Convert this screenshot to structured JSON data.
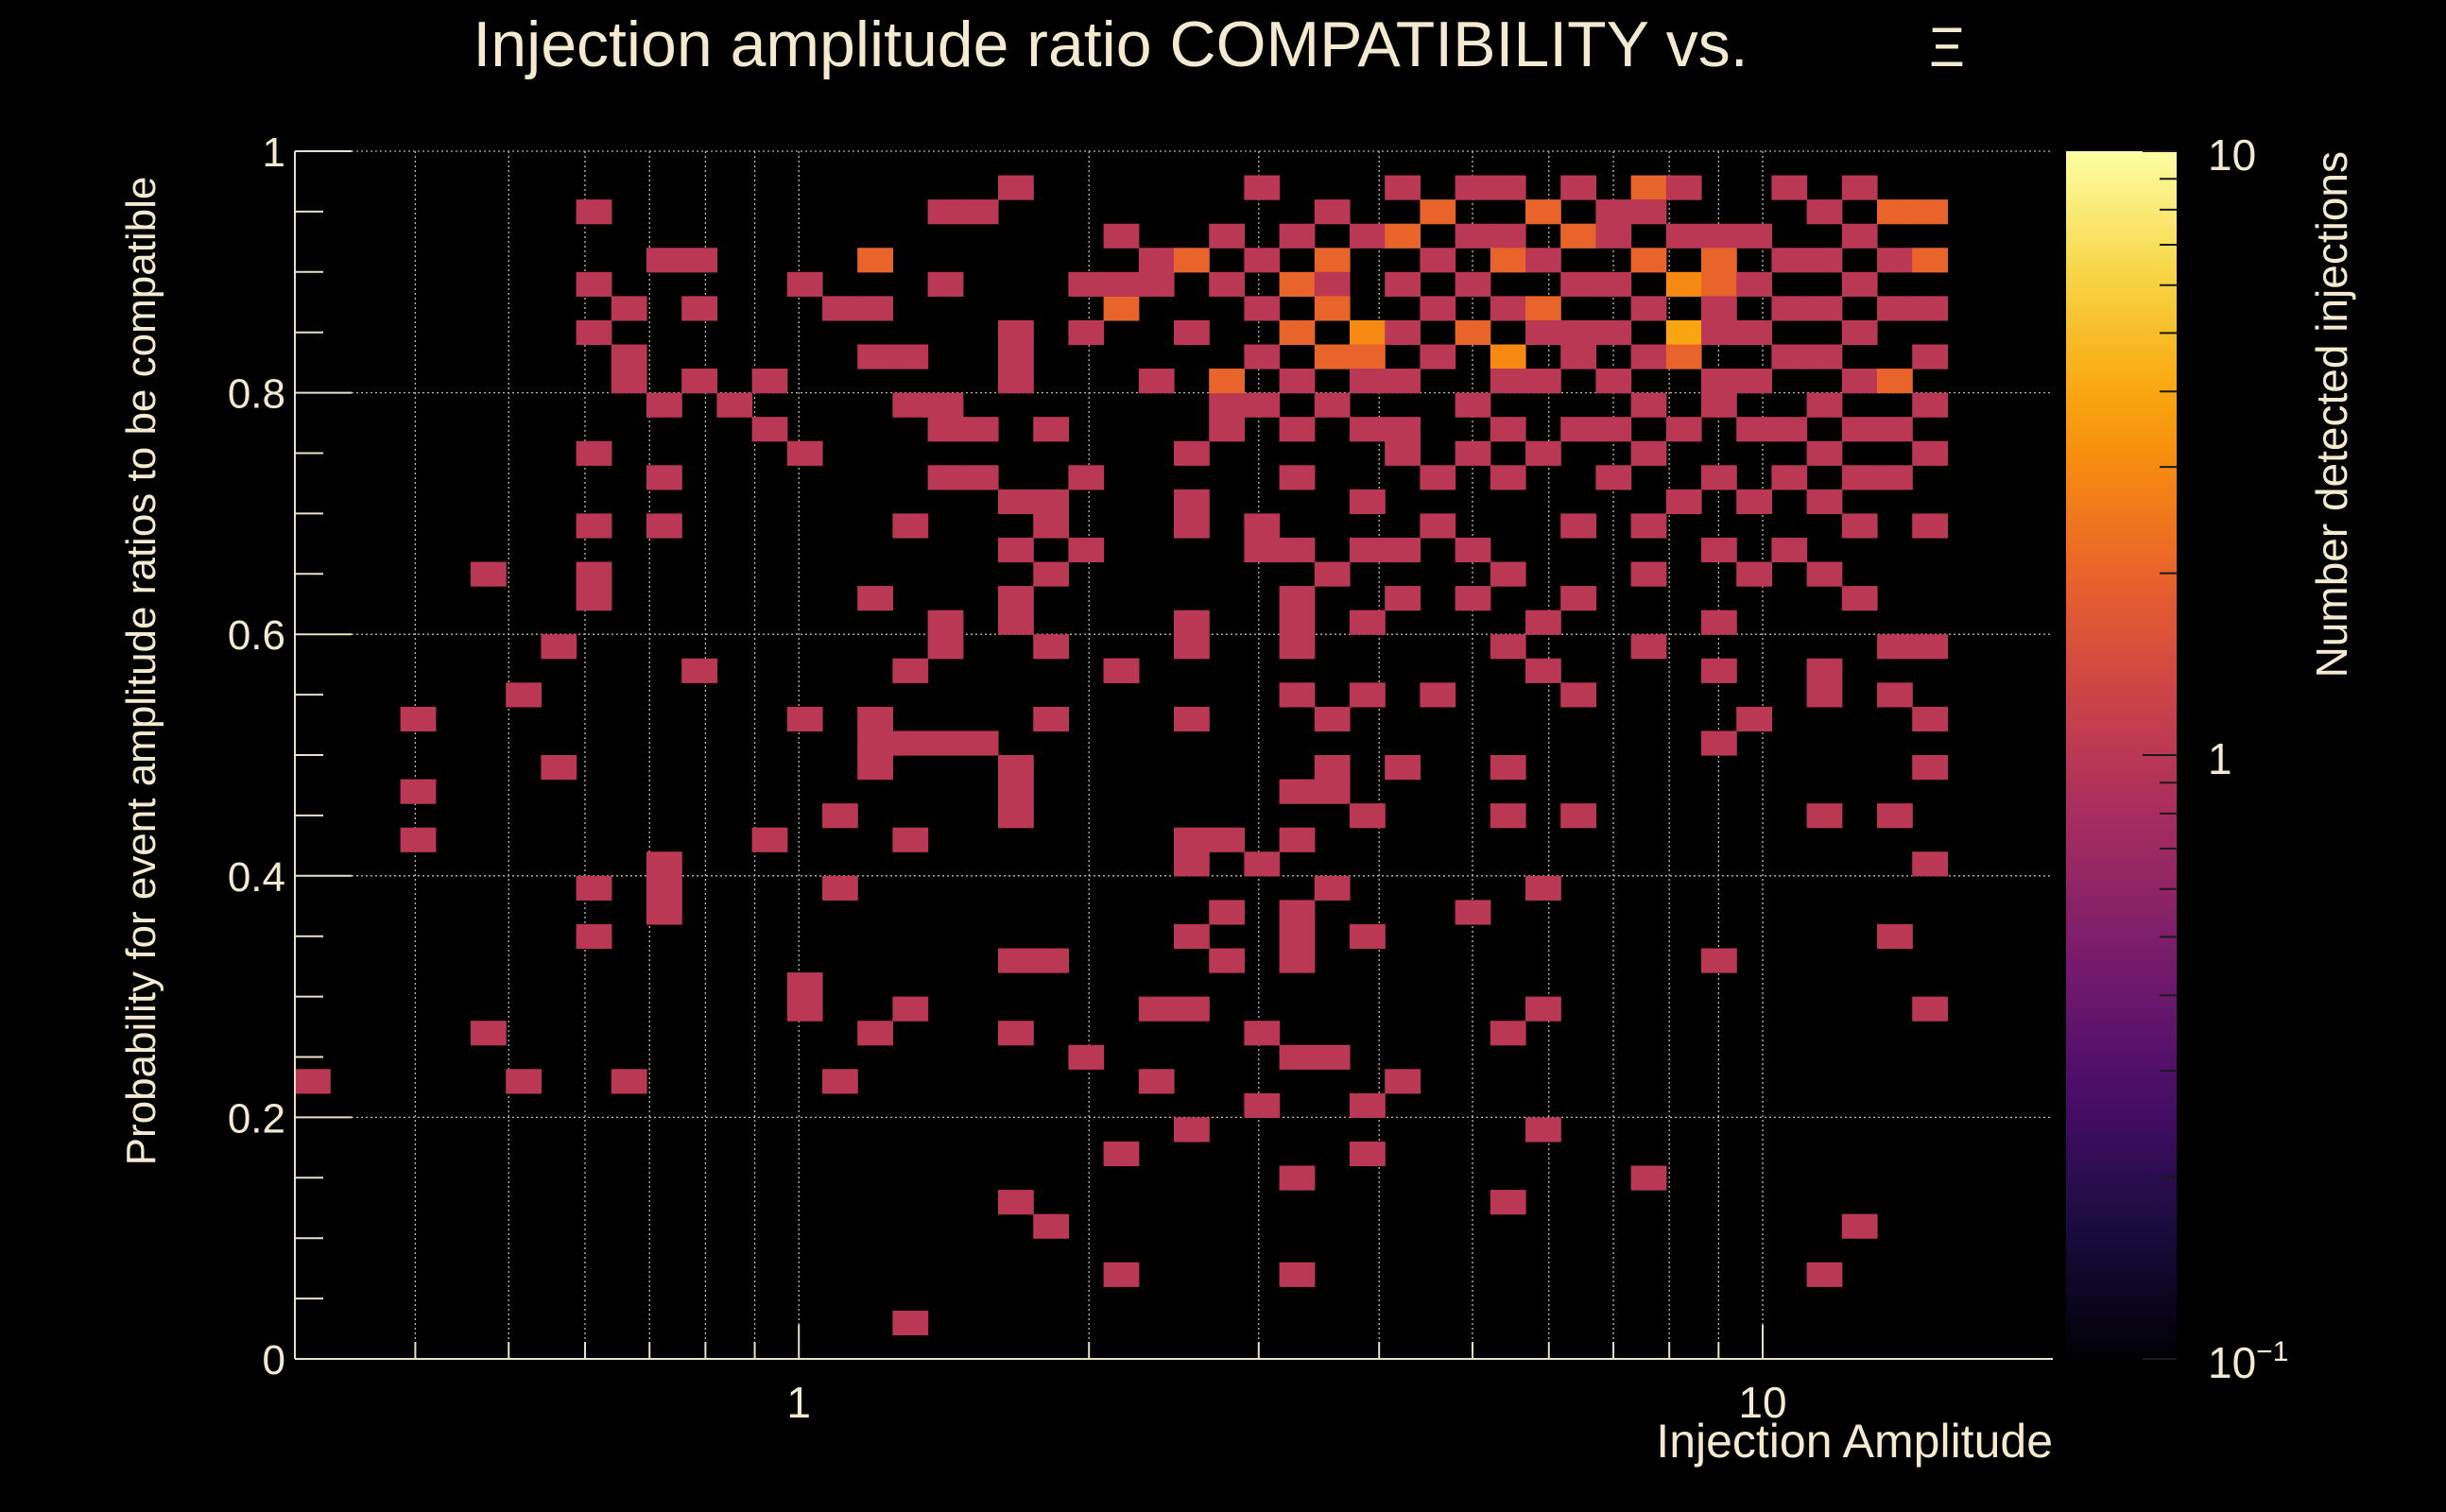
{
  "chart_data": {
    "type": "heatmap",
    "title": "Injection amplitude ratio COMPATIBILITY vs.",
    "title_symbol": "Ξ",
    "xlabel": "Injection Amplitude",
    "ylabel": "Probability for event amplitude ratios to be compatible",
    "zlabel": "Number detected injections",
    "x_scale": "log",
    "xlim": [
      0.3,
      20
    ],
    "ylim": [
      0,
      1
    ],
    "zlim": [
      0.1,
      10
    ],
    "z_scale": "log",
    "grid": true,
    "x_ticks": [
      {
        "value": 1,
        "label": "1"
      },
      {
        "value": 10,
        "label": "10"
      }
    ],
    "y_ticks": [
      {
        "value": 0,
        "label": "0"
      },
      {
        "value": 0.2,
        "label": "0.2"
      },
      {
        "value": 0.4,
        "label": "0.4"
      },
      {
        "value": 0.6,
        "label": "0.6"
      },
      {
        "value": 0.8,
        "label": "0.8"
      },
      {
        "value": 1,
        "label": "1"
      }
    ],
    "z_ticks": [
      {
        "value": 0.1,
        "label": "10",
        "sup": "−1"
      },
      {
        "value": 1,
        "label": "1",
        "sup": ""
      },
      {
        "value": 10,
        "label": "10",
        "sup": ""
      }
    ],
    "colormap": [
      "#000004",
      "#1b0c41",
      "#4a0c6b",
      "#781c6d",
      "#a52c60",
      "#cf4446",
      "#ed6925",
      "#fb9b06",
      "#f7d13d",
      "#fcffa4"
    ],
    "x_bins": 50,
    "y_bins": 50,
    "cells": [
      [
        0,
        11,
        1
      ],
      [
        3,
        26,
        1
      ],
      [
        3,
        23,
        1
      ],
      [
        3,
        21,
        1
      ],
      [
        5,
        13,
        1
      ],
      [
        5,
        32,
        1
      ],
      [
        6,
        27,
        1
      ],
      [
        6,
        11,
        1
      ],
      [
        7,
        24,
        1
      ],
      [
        7,
        29,
        1
      ],
      [
        8,
        31,
        1
      ],
      [
        8,
        32,
        1
      ],
      [
        8,
        34,
        1
      ],
      [
        8,
        37,
        1
      ],
      [
        8,
        42,
        1
      ],
      [
        8,
        44,
        1
      ],
      [
        8,
        47,
        1
      ],
      [
        8,
        17,
        1
      ],
      [
        8,
        19,
        1
      ],
      [
        9,
        40,
        1
      ],
      [
        9,
        41,
        1
      ],
      [
        9,
        43,
        1
      ],
      [
        9,
        11,
        1
      ],
      [
        10,
        45,
        1
      ],
      [
        10,
        39,
        1
      ],
      [
        10,
        36,
        1
      ],
      [
        10,
        34,
        1
      ],
      [
        10,
        20,
        1
      ],
      [
        10,
        18,
        1
      ],
      [
        10,
        19,
        1
      ],
      [
        11,
        40,
        1
      ],
      [
        11,
        43,
        1
      ],
      [
        11,
        45,
        1
      ],
      [
        11,
        28,
        1
      ],
      [
        12,
        39,
        1
      ],
      [
        13,
        40,
        1
      ],
      [
        13,
        38,
        1
      ],
      [
        13,
        21,
        1
      ],
      [
        14,
        37,
        1
      ],
      [
        14,
        44,
        1
      ],
      [
        14,
        26,
        1
      ],
      [
        14,
        15,
        1
      ],
      [
        14,
        14,
        1
      ],
      [
        15,
        19,
        1
      ],
      [
        15,
        22,
        1
      ],
      [
        15,
        43,
        1
      ],
      [
        15,
        11,
        1
      ],
      [
        16,
        45,
        2
      ],
      [
        16,
        41,
        1
      ],
      [
        16,
        43,
        1
      ],
      [
        16,
        31,
        1
      ],
      [
        16,
        26,
        1
      ],
      [
        16,
        25,
        1
      ],
      [
        16,
        24,
        1
      ],
      [
        16,
        13,
        1
      ],
      [
        17,
        41,
        1
      ],
      [
        17,
        39,
        1
      ],
      [
        17,
        34,
        1
      ],
      [
        17,
        28,
        1
      ],
      [
        17,
        25,
        1
      ],
      [
        17,
        21,
        1
      ],
      [
        17,
        14,
        1
      ],
      [
        17,
        1,
        1
      ],
      [
        18,
        36,
        1
      ],
      [
        18,
        38,
        1
      ],
      [
        18,
        39,
        1
      ],
      [
        18,
        47,
        1
      ],
      [
        18,
        44,
        1
      ],
      [
        18,
        30,
        1
      ],
      [
        18,
        29,
        1
      ],
      [
        18,
        25,
        1
      ],
      [
        19,
        38,
        1
      ],
      [
        19,
        36,
        1
      ],
      [
        19,
        47,
        1
      ],
      [
        19,
        25,
        1
      ],
      [
        20,
        40,
        1
      ],
      [
        20,
        41,
        1
      ],
      [
        20,
        42,
        1
      ],
      [
        20,
        48,
        1
      ],
      [
        20,
        31,
        1
      ],
      [
        20,
        33,
        1
      ],
      [
        20,
        35,
        1
      ],
      [
        20,
        30,
        1
      ],
      [
        20,
        24,
        1
      ],
      [
        20,
        23,
        1
      ],
      [
        20,
        22,
        1
      ],
      [
        20,
        16,
        1
      ],
      [
        20,
        13,
        1
      ],
      [
        20,
        6,
        1
      ],
      [
        21,
        38,
        1
      ],
      [
        21,
        34,
        1
      ],
      [
        21,
        35,
        1
      ],
      [
        21,
        32,
        1
      ],
      [
        21,
        29,
        1
      ],
      [
        21,
        26,
        1
      ],
      [
        21,
        16,
        1
      ],
      [
        21,
        5,
        1
      ],
      [
        22,
        44,
        1
      ],
      [
        22,
        42,
        1
      ],
      [
        22,
        36,
        1
      ],
      [
        22,
        33,
        1
      ],
      [
        22,
        12,
        1
      ],
      [
        23,
        46,
        1
      ],
      [
        23,
        43,
        2
      ],
      [
        23,
        44,
        1
      ],
      [
        23,
        28,
        1
      ],
      [
        23,
        28,
        1
      ],
      [
        23,
        28,
        1
      ],
      [
        23,
        8,
        1
      ],
      [
        23,
        3,
        1
      ],
      [
        24,
        45,
        1
      ],
      [
        24,
        44,
        1
      ],
      [
        24,
        40,
        1
      ],
      [
        24,
        14,
        1
      ],
      [
        24,
        11,
        1
      ],
      [
        25,
        45,
        2
      ],
      [
        25,
        42,
        1
      ],
      [
        25,
        37,
        1
      ],
      [
        25,
        35,
        1
      ],
      [
        25,
        34,
        1
      ],
      [
        25,
        30,
        1
      ],
      [
        25,
        29,
        1
      ],
      [
        25,
        26,
        1
      ],
      [
        25,
        21,
        1
      ],
      [
        25,
        20,
        1
      ],
      [
        25,
        17,
        1
      ],
      [
        25,
        14,
        1
      ],
      [
        25,
        9,
        1
      ],
      [
        26,
        46,
        1
      ],
      [
        26,
        44,
        1
      ],
      [
        26,
        39,
        1
      ],
      [
        26,
        40,
        2
      ],
      [
        26,
        38,
        1
      ],
      [
        26,
        21,
        1
      ],
      [
        26,
        18,
        1
      ],
      [
        26,
        16,
        1
      ],
      [
        27,
        48,
        1
      ],
      [
        27,
        45,
        1
      ],
      [
        27,
        43,
        1
      ],
      [
        27,
        41,
        1
      ],
      [
        27,
        39,
        1
      ],
      [
        27,
        34,
        1
      ],
      [
        27,
        33,
        1
      ],
      [
        27,
        20,
        1
      ],
      [
        27,
        13,
        1
      ],
      [
        27,
        10,
        1
      ],
      [
        28,
        46,
        1
      ],
      [
        28,
        44,
        2
      ],
      [
        28,
        42,
        2
      ],
      [
        28,
        40,
        1
      ],
      [
        28,
        38,
        1
      ],
      [
        28,
        36,
        1
      ],
      [
        28,
        33,
        1
      ],
      [
        28,
        31,
        1
      ],
      [
        28,
        30,
        1
      ],
      [
        28,
        29,
        1
      ],
      [
        28,
        27,
        1
      ],
      [
        28,
        23,
        1
      ],
      [
        28,
        21,
        1
      ],
      [
        28,
        18,
        1
      ],
      [
        28,
        17,
        1
      ],
      [
        28,
        16,
        1
      ],
      [
        28,
        12,
        1
      ],
      [
        28,
        7,
        1
      ],
      [
        28,
        3,
        1
      ],
      [
        29,
        47,
        1
      ],
      [
        29,
        45,
        2
      ],
      [
        29,
        44,
        1
      ],
      [
        29,
        43,
        2
      ],
      [
        29,
        41,
        2
      ],
      [
        29,
        39,
        1
      ],
      [
        29,
        32,
        1
      ],
      [
        29,
        26,
        1
      ],
      [
        29,
        24,
        1
      ],
      [
        29,
        23,
        1
      ],
      [
        29,
        19,
        1
      ],
      [
        29,
        12,
        1
      ],
      [
        30,
        46,
        1
      ],
      [
        30,
        42,
        3
      ],
      [
        30,
        41,
        2
      ],
      [
        30,
        40,
        1
      ],
      [
        30,
        38,
        1
      ],
      [
        30,
        35,
        1
      ],
      [
        30,
        33,
        1
      ],
      [
        30,
        30,
        1
      ],
      [
        30,
        27,
        1
      ],
      [
        30,
        22,
        1
      ],
      [
        30,
        17,
        1
      ],
      [
        30,
        10,
        1
      ],
      [
        30,
        8,
        1
      ],
      [
        31,
        48,
        1
      ],
      [
        31,
        46,
        2
      ],
      [
        31,
        44,
        1
      ],
      [
        31,
        42,
        1
      ],
      [
        31,
        40,
        1
      ],
      [
        31,
        38,
        1
      ],
      [
        31,
        37,
        1
      ],
      [
        31,
        33,
        1
      ],
      [
        31,
        31,
        1
      ],
      [
        31,
        24,
        1
      ],
      [
        31,
        11,
        1
      ],
      [
        32,
        47,
        2
      ],
      [
        32,
        45,
        1
      ],
      [
        32,
        43,
        1
      ],
      [
        32,
        41,
        1
      ],
      [
        32,
        36,
        1
      ],
      [
        32,
        34,
        1
      ],
      [
        32,
        27,
        1
      ],
      [
        33,
        48,
        1
      ],
      [
        33,
        46,
        1
      ],
      [
        33,
        44,
        1
      ],
      [
        33,
        42,
        2
      ],
      [
        33,
        39,
        1
      ],
      [
        33,
        37,
        1
      ],
      [
        33,
        33,
        1
      ],
      [
        33,
        31,
        1
      ],
      [
        33,
        18,
        1
      ],
      [
        34,
        48,
        1
      ],
      [
        34,
        46,
        1
      ],
      [
        34,
        45,
        2
      ],
      [
        34,
        43,
        1
      ],
      [
        34,
        41,
        3
      ],
      [
        34,
        40,
        1
      ],
      [
        34,
        38,
        1
      ],
      [
        34,
        36,
        1
      ],
      [
        34,
        32,
        1
      ],
      [
        34,
        29,
        1
      ],
      [
        34,
        24,
        1
      ],
      [
        34,
        22,
        1
      ],
      [
        34,
        13,
        1
      ],
      [
        34,
        6,
        1
      ],
      [
        35,
        47,
        2
      ],
      [
        35,
        45,
        1
      ],
      [
        35,
        43,
        2
      ],
      [
        35,
        42,
        1
      ],
      [
        35,
        40,
        1
      ],
      [
        35,
        37,
        1
      ],
      [
        35,
        30,
        1
      ],
      [
        35,
        28,
        1
      ],
      [
        35,
        19,
        1
      ],
      [
        35,
        14,
        1
      ],
      [
        35,
        9,
        1
      ],
      [
        36,
        48,
        1
      ],
      [
        36,
        46,
        2
      ],
      [
        36,
        44,
        1
      ],
      [
        36,
        42,
        1
      ],
      [
        36,
        41,
        1
      ],
      [
        36,
        38,
        1
      ],
      [
        36,
        34,
        1
      ],
      [
        36,
        31,
        1
      ],
      [
        36,
        27,
        1
      ],
      [
        36,
        22,
        1
      ],
      [
        37,
        47,
        1
      ],
      [
        37,
        46,
        1
      ],
      [
        37,
        44,
        1
      ],
      [
        37,
        42,
        1
      ],
      [
        37,
        40,
        1
      ],
      [
        37,
        38,
        1
      ],
      [
        37,
        36,
        1
      ],
      [
        38,
        48,
        2
      ],
      [
        38,
        47,
        1
      ],
      [
        38,
        45,
        2
      ],
      [
        38,
        43,
        1
      ],
      [
        38,
        41,
        1
      ],
      [
        38,
        39,
        1
      ],
      [
        38,
        37,
        1
      ],
      [
        38,
        34,
        1
      ],
      [
        38,
        32,
        1
      ],
      [
        38,
        29,
        1
      ],
      [
        38,
        7,
        1
      ],
      [
        39,
        48,
        1
      ],
      [
        39,
        46,
        1
      ],
      [
        39,
        44,
        3
      ],
      [
        39,
        42,
        4
      ],
      [
        39,
        41,
        2
      ],
      [
        39,
        38,
        1
      ],
      [
        39,
        35,
        1
      ],
      [
        40,
        46,
        1
      ],
      [
        40,
        45,
        2
      ],
      [
        40,
        44,
        2
      ],
      [
        40,
        43,
        1
      ],
      [
        40,
        42,
        1
      ],
      [
        40,
        40,
        1
      ],
      [
        40,
        39,
        1
      ],
      [
        40,
        36,
        1
      ],
      [
        40,
        33,
        1
      ],
      [
        40,
        30,
        1
      ],
      [
        40,
        28,
        1
      ],
      [
        40,
        25,
        1
      ],
      [
        40,
        16,
        1
      ],
      [
        41,
        46,
        1
      ],
      [
        41,
        44,
        1
      ],
      [
        41,
        42,
        1
      ],
      [
        41,
        40,
        1
      ],
      [
        41,
        38,
        1
      ],
      [
        41,
        35,
        1
      ],
      [
        41,
        32,
        1
      ],
      [
        41,
        26,
        1
      ],
      [
        42,
        48,
        1
      ],
      [
        42,
        45,
        1
      ],
      [
        42,
        43,
        1
      ],
      [
        42,
        41,
        1
      ],
      [
        42,
        38,
        1
      ],
      [
        42,
        36,
        1
      ],
      [
        42,
        33,
        1
      ],
      [
        43,
        47,
        1
      ],
      [
        43,
        45,
        1
      ],
      [
        43,
        43,
        1
      ],
      [
        43,
        41,
        1
      ],
      [
        43,
        39,
        1
      ],
      [
        43,
        37,
        1
      ],
      [
        43,
        35,
        1
      ],
      [
        43,
        32,
        1
      ],
      [
        43,
        28,
        1
      ],
      [
        43,
        27,
        1
      ],
      [
        43,
        22,
        1
      ],
      [
        43,
        3,
        1
      ],
      [
        44,
        48,
        1
      ],
      [
        44,
        46,
        1
      ],
      [
        44,
        44,
        1
      ],
      [
        44,
        42,
        1
      ],
      [
        44,
        40,
        1
      ],
      [
        44,
        38,
        1
      ],
      [
        44,
        36,
        1
      ],
      [
        44,
        34,
        1
      ],
      [
        44,
        31,
        1
      ],
      [
        44,
        5,
        1
      ],
      [
        45,
        47,
        2
      ],
      [
        45,
        45,
        1
      ],
      [
        45,
        43,
        1
      ],
      [
        45,
        40,
        2
      ],
      [
        45,
        38,
        1
      ],
      [
        45,
        36,
        1
      ],
      [
        45,
        29,
        1
      ],
      [
        45,
        27,
        1
      ],
      [
        45,
        22,
        1
      ],
      [
        45,
        17,
        1
      ],
      [
        46,
        47,
        2
      ],
      [
        46,
        45,
        2
      ],
      [
        46,
        43,
        1
      ],
      [
        46,
        41,
        1
      ],
      [
        46,
        39,
        1
      ],
      [
        46,
        37,
        1
      ],
      [
        46,
        34,
        1
      ],
      [
        46,
        29,
        1
      ],
      [
        46,
        26,
        1
      ],
      [
        46,
        24,
        1
      ],
      [
        46,
        20,
        1
      ],
      [
        46,
        14,
        1
      ]
    ]
  }
}
